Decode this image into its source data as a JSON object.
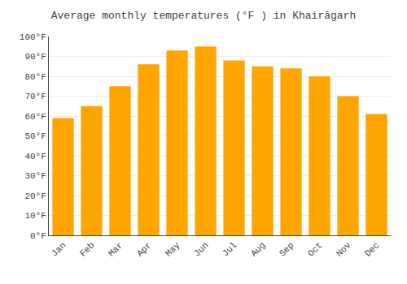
{
  "chart_data": {
    "type": "bar",
    "title": "Average monthly temperatures (°F ) in Khairāgarh",
    "categories": [
      "Jan",
      "Feb",
      "Mar",
      "Apr",
      "May",
      "Jun",
      "Jul",
      "Aug",
      "Sep",
      "Oct",
      "Nov",
      "Dec"
    ],
    "values": [
      59,
      65,
      75,
      86,
      93,
      95,
      88,
      85,
      84,
      80,
      70,
      61
    ],
    "color": "#FFA500",
    "ylim": [
      0,
      100
    ],
    "yticks": [
      {
        "value": 0,
        "label": "0°F"
      },
      {
        "value": 10,
        "label": "10°F"
      },
      {
        "value": 20,
        "label": "20°F"
      },
      {
        "value": 30,
        "label": "30°F"
      },
      {
        "value": 40,
        "label": "40°F"
      },
      {
        "value": 50,
        "label": "50°F"
      },
      {
        "value": 60,
        "label": "60°F"
      },
      {
        "value": 70,
        "label": "70°F"
      },
      {
        "value": 80,
        "label": "80°F"
      },
      {
        "value": 90,
        "label": "90°F"
      },
      {
        "value": 100,
        "label": "100°F"
      }
    ],
    "grid": true
  }
}
